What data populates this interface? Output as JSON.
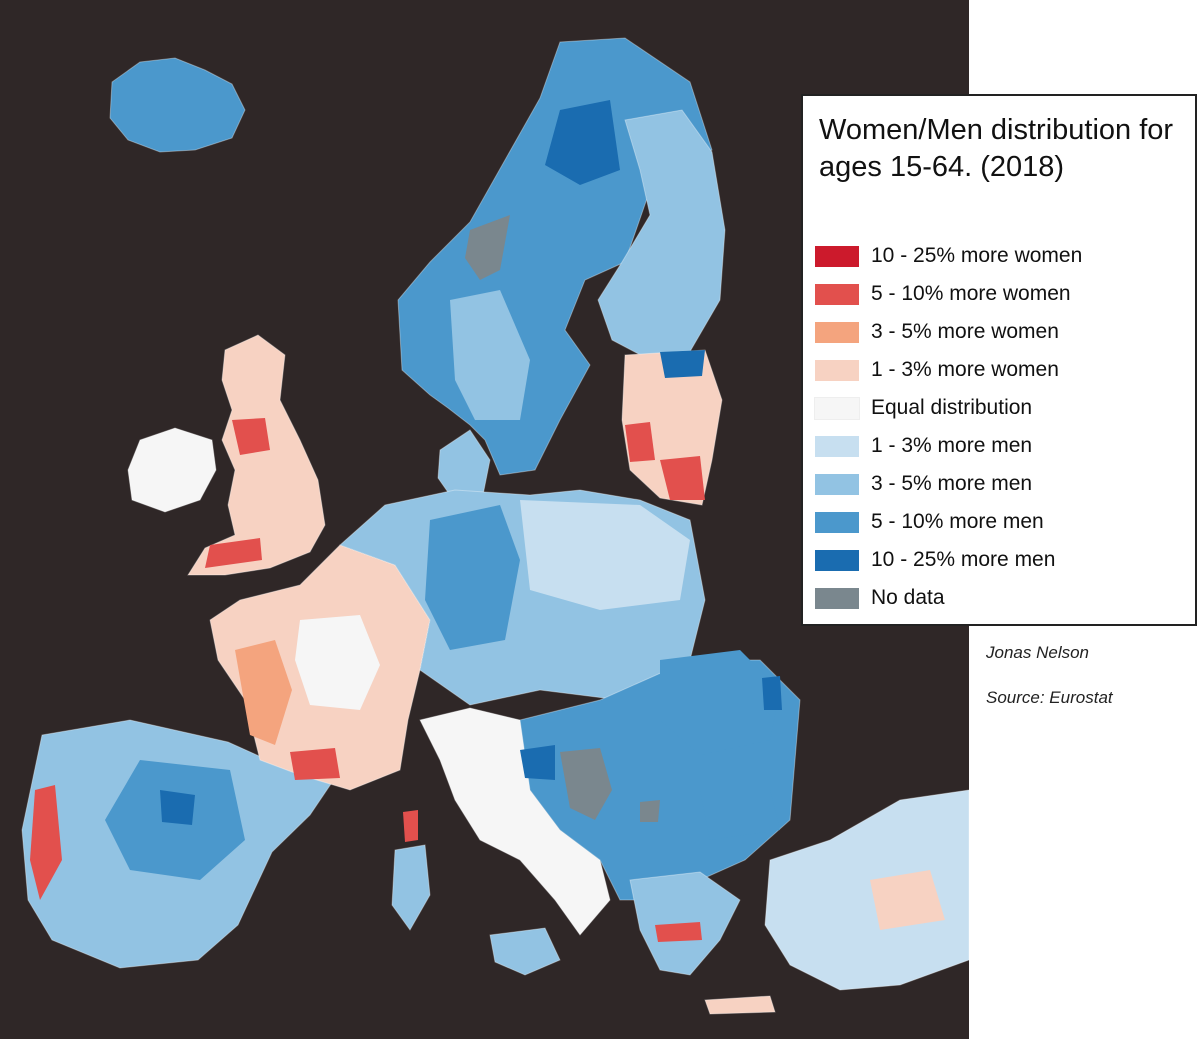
{
  "title": "Women/Men distribution for ages 15-64. (2018)",
  "legend": [
    {
      "label": "10 - 25% more women",
      "color": "#cc1a2c"
    },
    {
      "label": "5 - 10% more women",
      "color": "#e2504d"
    },
    {
      "label": "3 - 5% more women",
      "color": "#f4a47e"
    },
    {
      "label": "1 - 3% more women",
      "color": "#f7d2c2"
    },
    {
      "label": "Equal distribution",
      "color": "#f6f6f6"
    },
    {
      "label": "1 - 3% more men",
      "color": "#c7dff0"
    },
    {
      "label": "3 - 5% more men",
      "color": "#92c3e3"
    },
    {
      "label": "5 - 10% more men",
      "color": "#4b98cc"
    },
    {
      "label": "10 - 25% more men",
      "color": "#1a6cb0"
    },
    {
      "label": "No data",
      "color": "#7a878e"
    }
  ],
  "author": "Jonas Nelson",
  "source": "Source: Eurostat",
  "map_background": "#2f2727"
}
